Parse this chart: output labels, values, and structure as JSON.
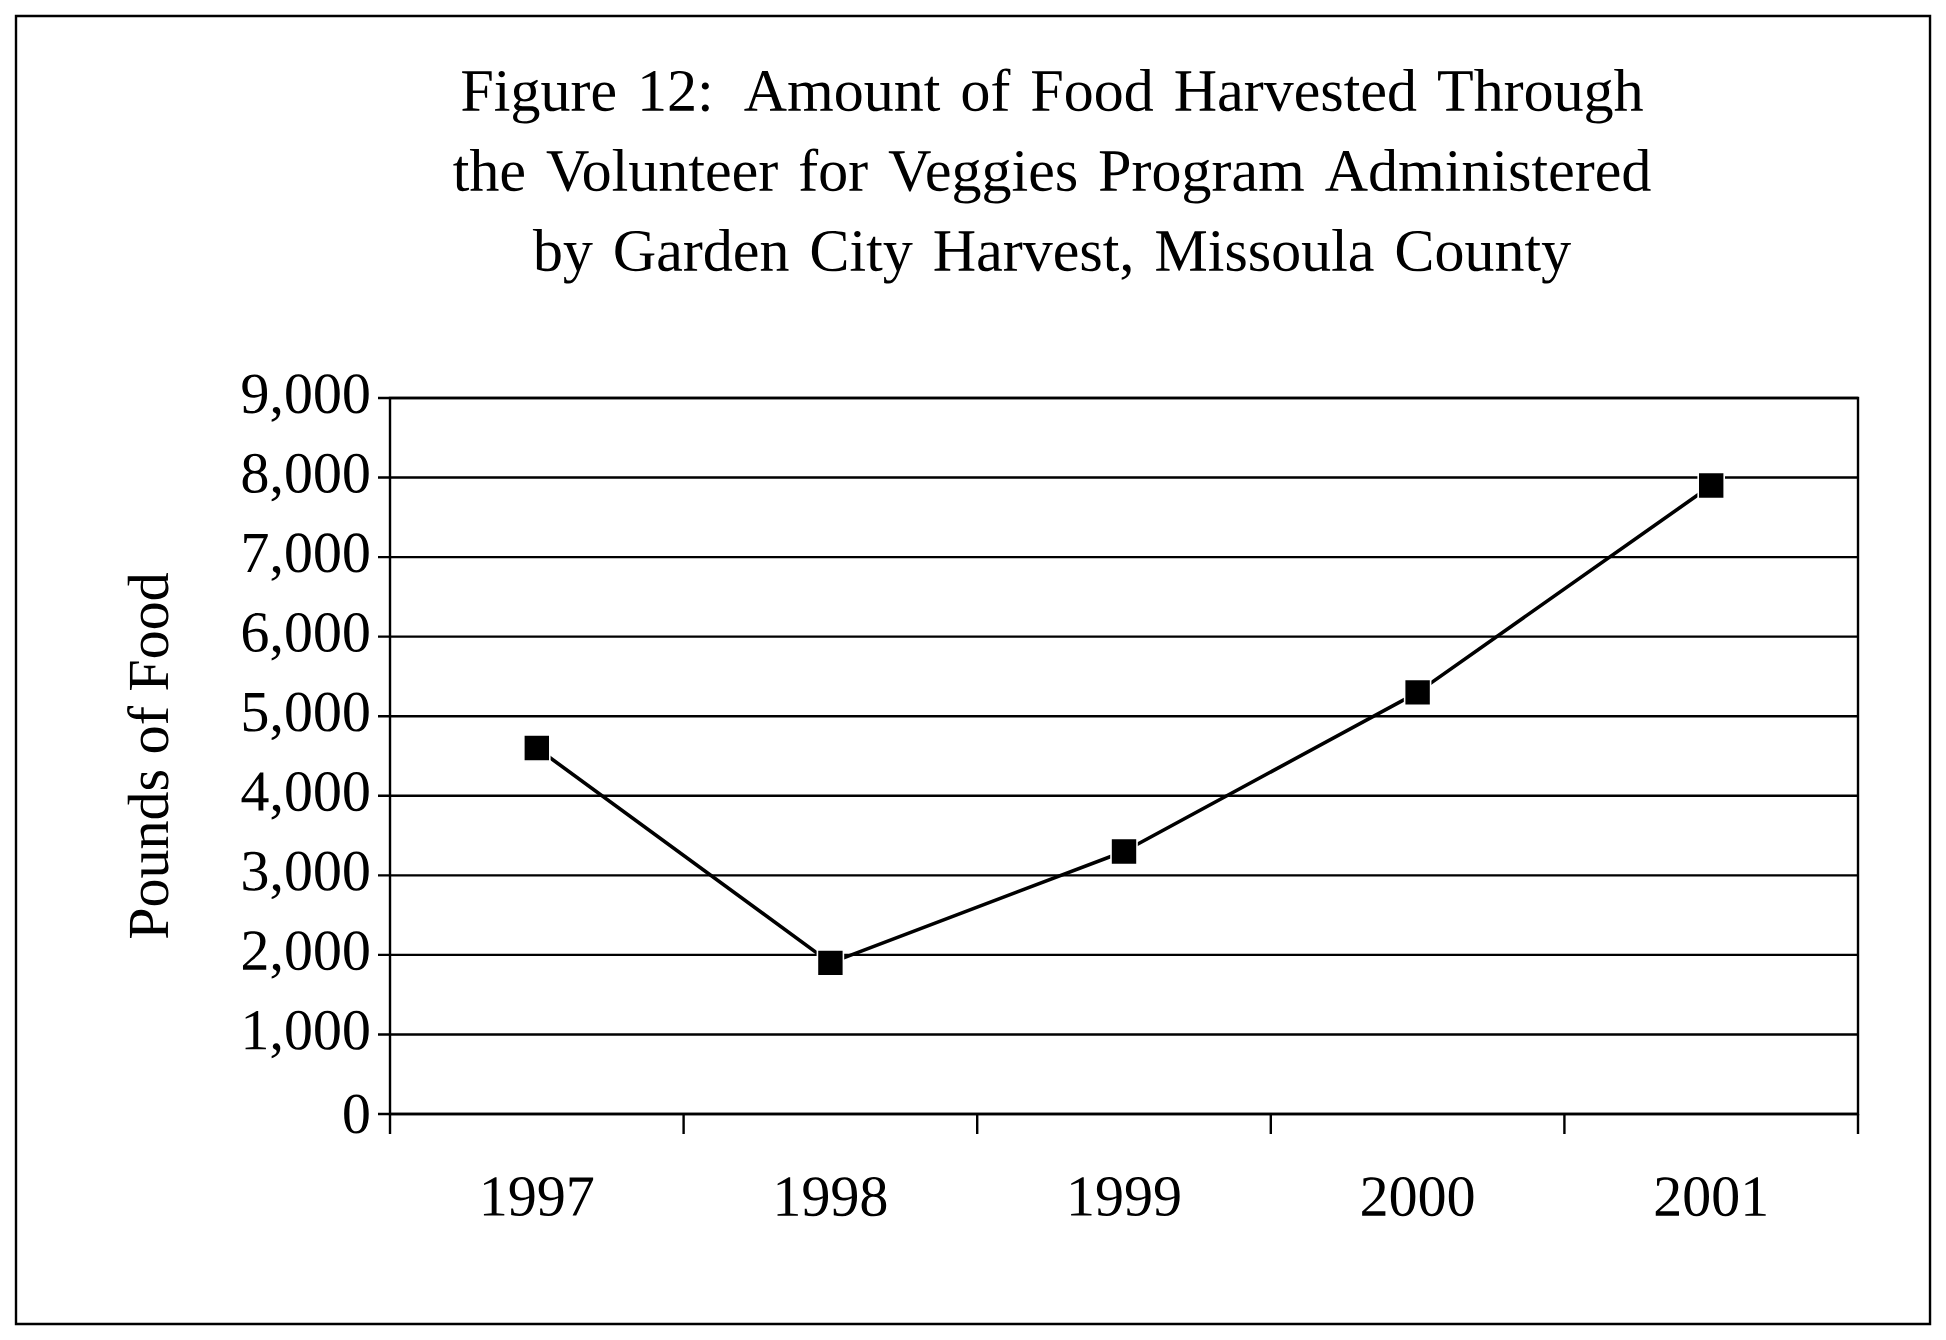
{
  "chart_data": {
    "type": "line",
    "title": "Figure 12:  Amount of Food Harvested Through the Volunteer for Veggies Program Administered by Garden City Harvest, Missoula County",
    "ylabel": "Pounds of Food",
    "categories": [
      "1997",
      "1998",
      "1999",
      "2000",
      "2001"
    ],
    "series": [
      {
        "color": "#000000",
        "values": [
          4600,
          1900,
          3300,
          5300,
          7900
        ]
      }
    ],
    "ylim": [
      0,
      9000
    ],
    "yticks": [
      0,
      {
        "value": 1000,
        "label": "1,000"
      },
      {
        "value": 2000,
        "label": "2,000"
      },
      {
        "value": 3000,
        "label": "3,000"
      },
      {
        "value": 4000,
        "label": "4,000"
      },
      {
        "value": 5000,
        "label": "5,000"
      },
      {
        "value": 6000,
        "label": "6,000"
      },
      {
        "value": 7000,
        "label": "7,000"
      },
      {
        "value": 8000,
        "label": "8,000"
      },
      {
        "value": 9000,
        "label": "9,000"
      }
    ],
    "grid": "y",
    "marker": "square",
    "line_style": "solid"
  }
}
